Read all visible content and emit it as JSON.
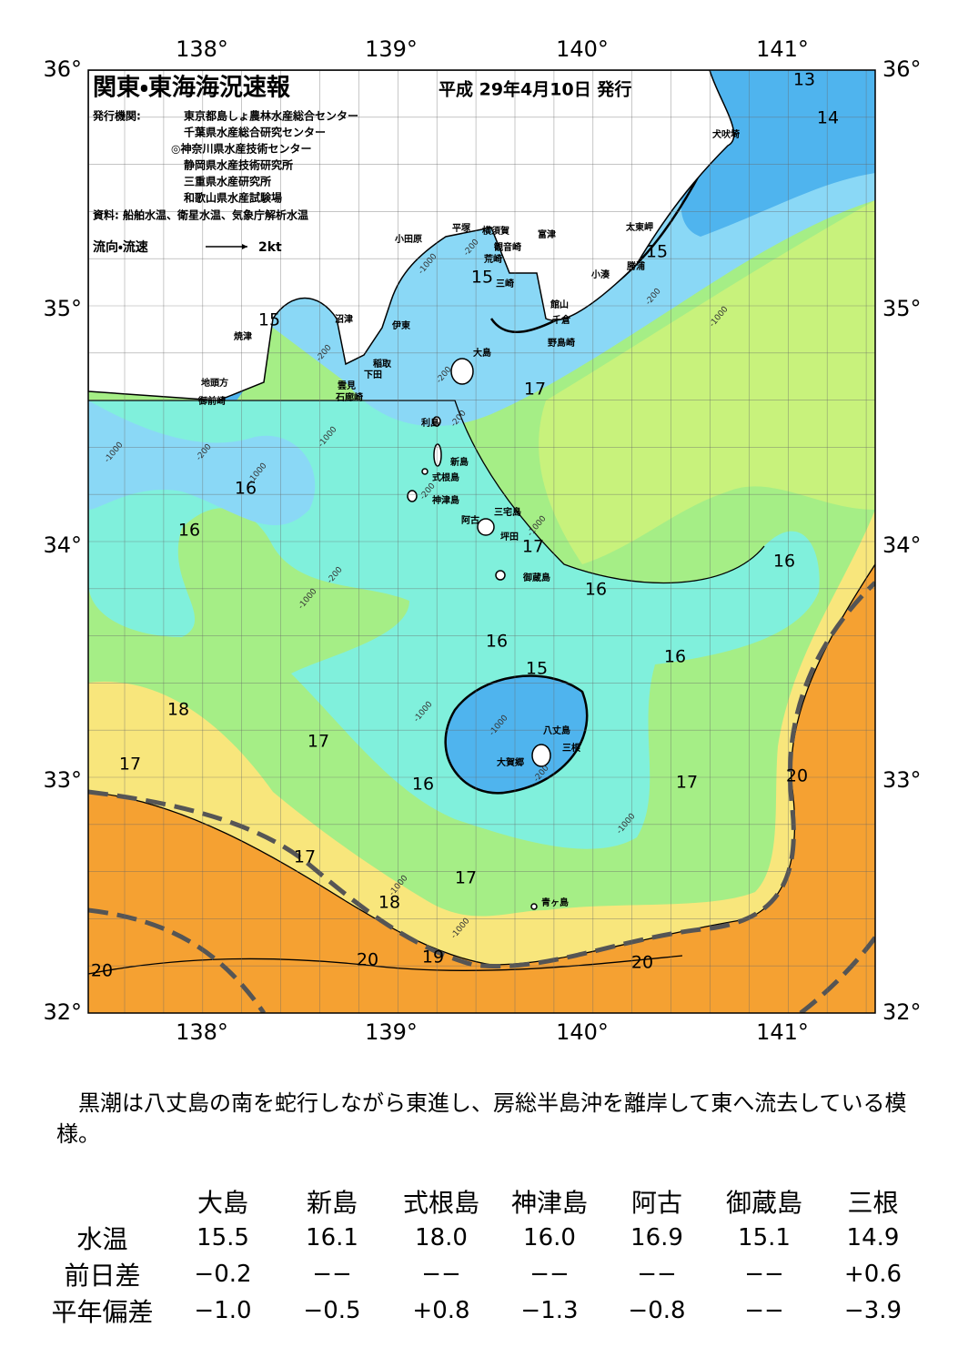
{
  "map": {
    "title": "関東・東海海況速報",
    "date": "平成 29年4月10日 発行",
    "issuer_label": "発行機関:",
    "issuers": [
      "東京都島しょ農林水産総合センター",
      "千葉県水産総合研究センター",
      "◎神奈川県水産技術センター",
      "静岡県水産技術研究所",
      "三重県水産研究所",
      "和歌山県水産試験場"
    ],
    "source": "資料: 船舶水温、衛星水温、気象庁解析水温",
    "legend_label": "流向・流速",
    "legend_speed": "2kt",
    "lon_labels": [
      "138°",
      "139°",
      "140°",
      "141°"
    ],
    "lat_labels": [
      "36°",
      "35°",
      "34°",
      "33°",
      "32°"
    ],
    "isotherm_labels": [
      "13",
      "14",
      "15",
      "15",
      "15",
      "17",
      "16",
      "16",
      "17",
      "16",
      "16",
      "16",
      "16",
      "15",
      "18",
      "17",
      "17",
      "16",
      "17",
      "20",
      "17",
      "17",
      "18",
      "19",
      "20",
      "20",
      "20"
    ],
    "place_names": [
      "犬吠埼",
      "太東岬",
      "勝浦",
      "小湊",
      "富津",
      "館山",
      "千倉",
      "野島崎",
      "観音崎",
      "横須賀",
      "平塚",
      "荒崎",
      "三崎",
      "小田原",
      "沼津",
      "伊東",
      "稲取",
      "下田",
      "雲見",
      "石廊崎",
      "焼津",
      "地頭方",
      "御前崎",
      "大島",
      "利島",
      "新島",
      "式根島",
      "神津島",
      "三宅島",
      "阿古",
      "坪田",
      "御蔵島",
      "八丈島",
      "三根",
      "大賀郷",
      "青ヶ島"
    ],
    "depth_labels": [
      "-200",
      "-1000",
      "-200",
      "-1000",
      "-200",
      "-200",
      "-200",
      "-1000",
      "-200",
      "-1000",
      "-1000",
      "-200",
      "-1000",
      "-200",
      "-1000",
      "-1000",
      "-1000",
      "-200",
      "-1000",
      "-1000",
      "-1000"
    ]
  },
  "text": {
    "paragraph": "黒潮は八丈島の南を蛇行しながら東進し、房総半島沖を離岸して東へ流去している模様。"
  },
  "table": {
    "columns": [
      "大島",
      "新島",
      "式根島",
      "神津島",
      "阿古",
      "御蔵島",
      "三根"
    ],
    "rows": [
      {
        "label": "水温",
        "values": [
          "15.5",
          "16.1",
          "18.0",
          "16.0",
          "16.9",
          "15.1",
          "14.9"
        ]
      },
      {
        "label": "前日差",
        "values": [
          "−0.2",
          "−−",
          "−−",
          "−−",
          "−−",
          "−−",
          "+0.6"
        ]
      },
      {
        "label": "平年偏差",
        "values": [
          "−1.0",
          "−0.5",
          "+0.8",
          "−1.3",
          "−0.8",
          "−−",
          "−3.9"
        ]
      }
    ]
  }
}
